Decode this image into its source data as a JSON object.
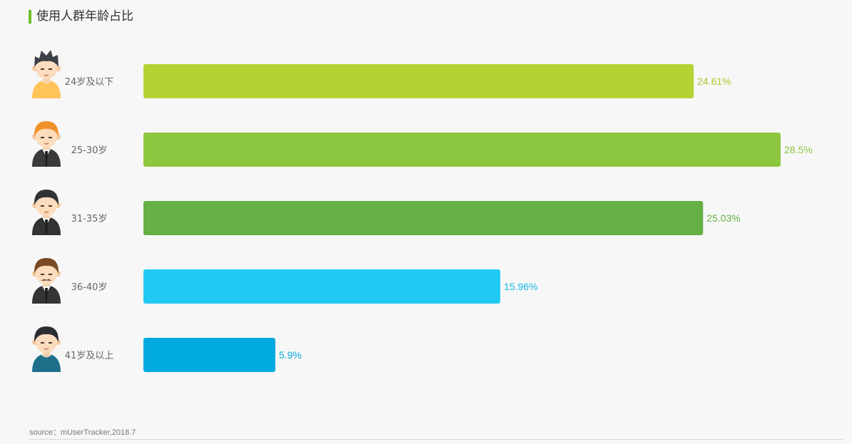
{
  "header": {
    "title": "使用人群年龄占比"
  },
  "footer": {
    "source": "source：mUserTracker,2018.7"
  },
  "chart_data": {
    "type": "bar",
    "orientation": "horizontal",
    "title": "使用人群年龄占比",
    "categories": [
      "24岁及以下",
      "25-30岁",
      "31-35岁",
      "36-40岁",
      "41岁及以上"
    ],
    "values": [
      24.61,
      28.5,
      25.03,
      15.96,
      5.9
    ],
    "value_labels": [
      "24.61%",
      "28.5%",
      "25.03%",
      "15.96%",
      "5.9%"
    ],
    "colors": [
      "#b3d334",
      "#8dc63f",
      "#65b045",
      "#20c9f2",
      "#00aadf"
    ],
    "label_colors": [
      "#a8c92c",
      "#8dc63f",
      "#65b045",
      "#13b9e8",
      "#00aadf"
    ],
    "xlim": [
      0,
      28.5
    ],
    "grid": false,
    "legend": "none",
    "icons": [
      "boy-yellow-shirt-icon",
      "man-orange-hair-suit-icon",
      "man-dark-suit-icon",
      "man-mustache-suit-icon",
      "man-blue-shirt-icon"
    ]
  }
}
